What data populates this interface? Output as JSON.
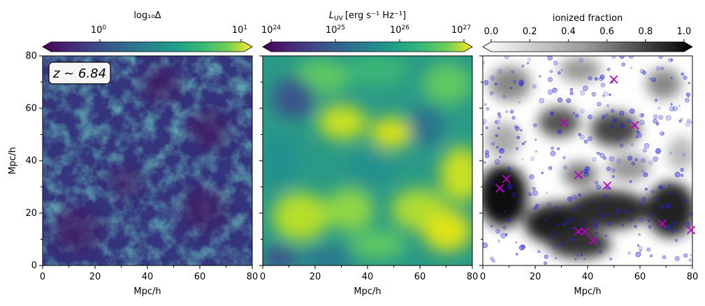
{
  "chart_data": [
    {
      "type": "heatmap",
      "panel": "density",
      "colorbar_label": "log₁₀Δ",
      "colorbar_ticks": [
        "10",
        "10"
      ],
      "colorbar_tick_exponents": [
        "0",
        "1"
      ],
      "colorbar_map": "viridis",
      "annotation": "z ~ 6.84",
      "xlabel": "Mpc/h",
      "ylabel": "Mpc/h",
      "xlim": [
        0,
        80
      ],
      "ylim": [
        0,
        80
      ],
      "xticks": [
        "0",
        "20",
        "40",
        "60",
        "80"
      ],
      "yticks": [
        "0",
        "20",
        "40",
        "60",
        "80"
      ]
    },
    {
      "type": "heatmap",
      "panel": "uv_luminosity",
      "colorbar_label_prefix": "L",
      "colorbar_label_sub": "UV",
      "colorbar_label_units": "[erg s⁻¹ Hz⁻¹]",
      "colorbar_ticks": [
        "10",
        "10",
        "10",
        "10"
      ],
      "colorbar_tick_exponents": [
        "24",
        "25",
        "26",
        "27"
      ],
      "colorbar_map": "viridis",
      "xlabel": "Mpc/h",
      "xlim": [
        0,
        80
      ],
      "ylim": [
        0,
        80
      ],
      "xticks": [
        "0",
        "20",
        "40",
        "60",
        "80"
      ]
    },
    {
      "type": "heatmap",
      "panel": "ionized_fraction",
      "colorbar_label": "ionized fraction",
      "colorbar_ticks": [
        "0.0",
        "0.2",
        "0.4",
        "0.6",
        "0.8",
        "1.0"
      ],
      "colorbar_map": "greys",
      "xlabel": "Mpc/h",
      "xlim": [
        0,
        80
      ],
      "ylim": [
        0,
        80
      ],
      "xticks": [
        "0",
        "20",
        "40",
        "60",
        "80"
      ],
      "marker_color": "#c000c0",
      "point_color": "#2020e0",
      "x_markers": [
        {
          "x": 50,
          "y": 71
        },
        {
          "x": 31,
          "y": 54.5
        },
        {
          "x": 58,
          "y": 53.5
        },
        {
          "x": 36.5,
          "y": 34.5
        },
        {
          "x": 47.5,
          "y": 30.5
        },
        {
          "x": 9,
          "y": 33
        },
        {
          "x": 6.5,
          "y": 29.5
        },
        {
          "x": 68.5,
          "y": 16
        },
        {
          "x": 79.5,
          "y": 13.5
        },
        {
          "x": 36.5,
          "y": 13
        },
        {
          "x": 39,
          "y": 13
        },
        {
          "x": 42,
          "y": 9.5
        }
      ]
    }
  ]
}
